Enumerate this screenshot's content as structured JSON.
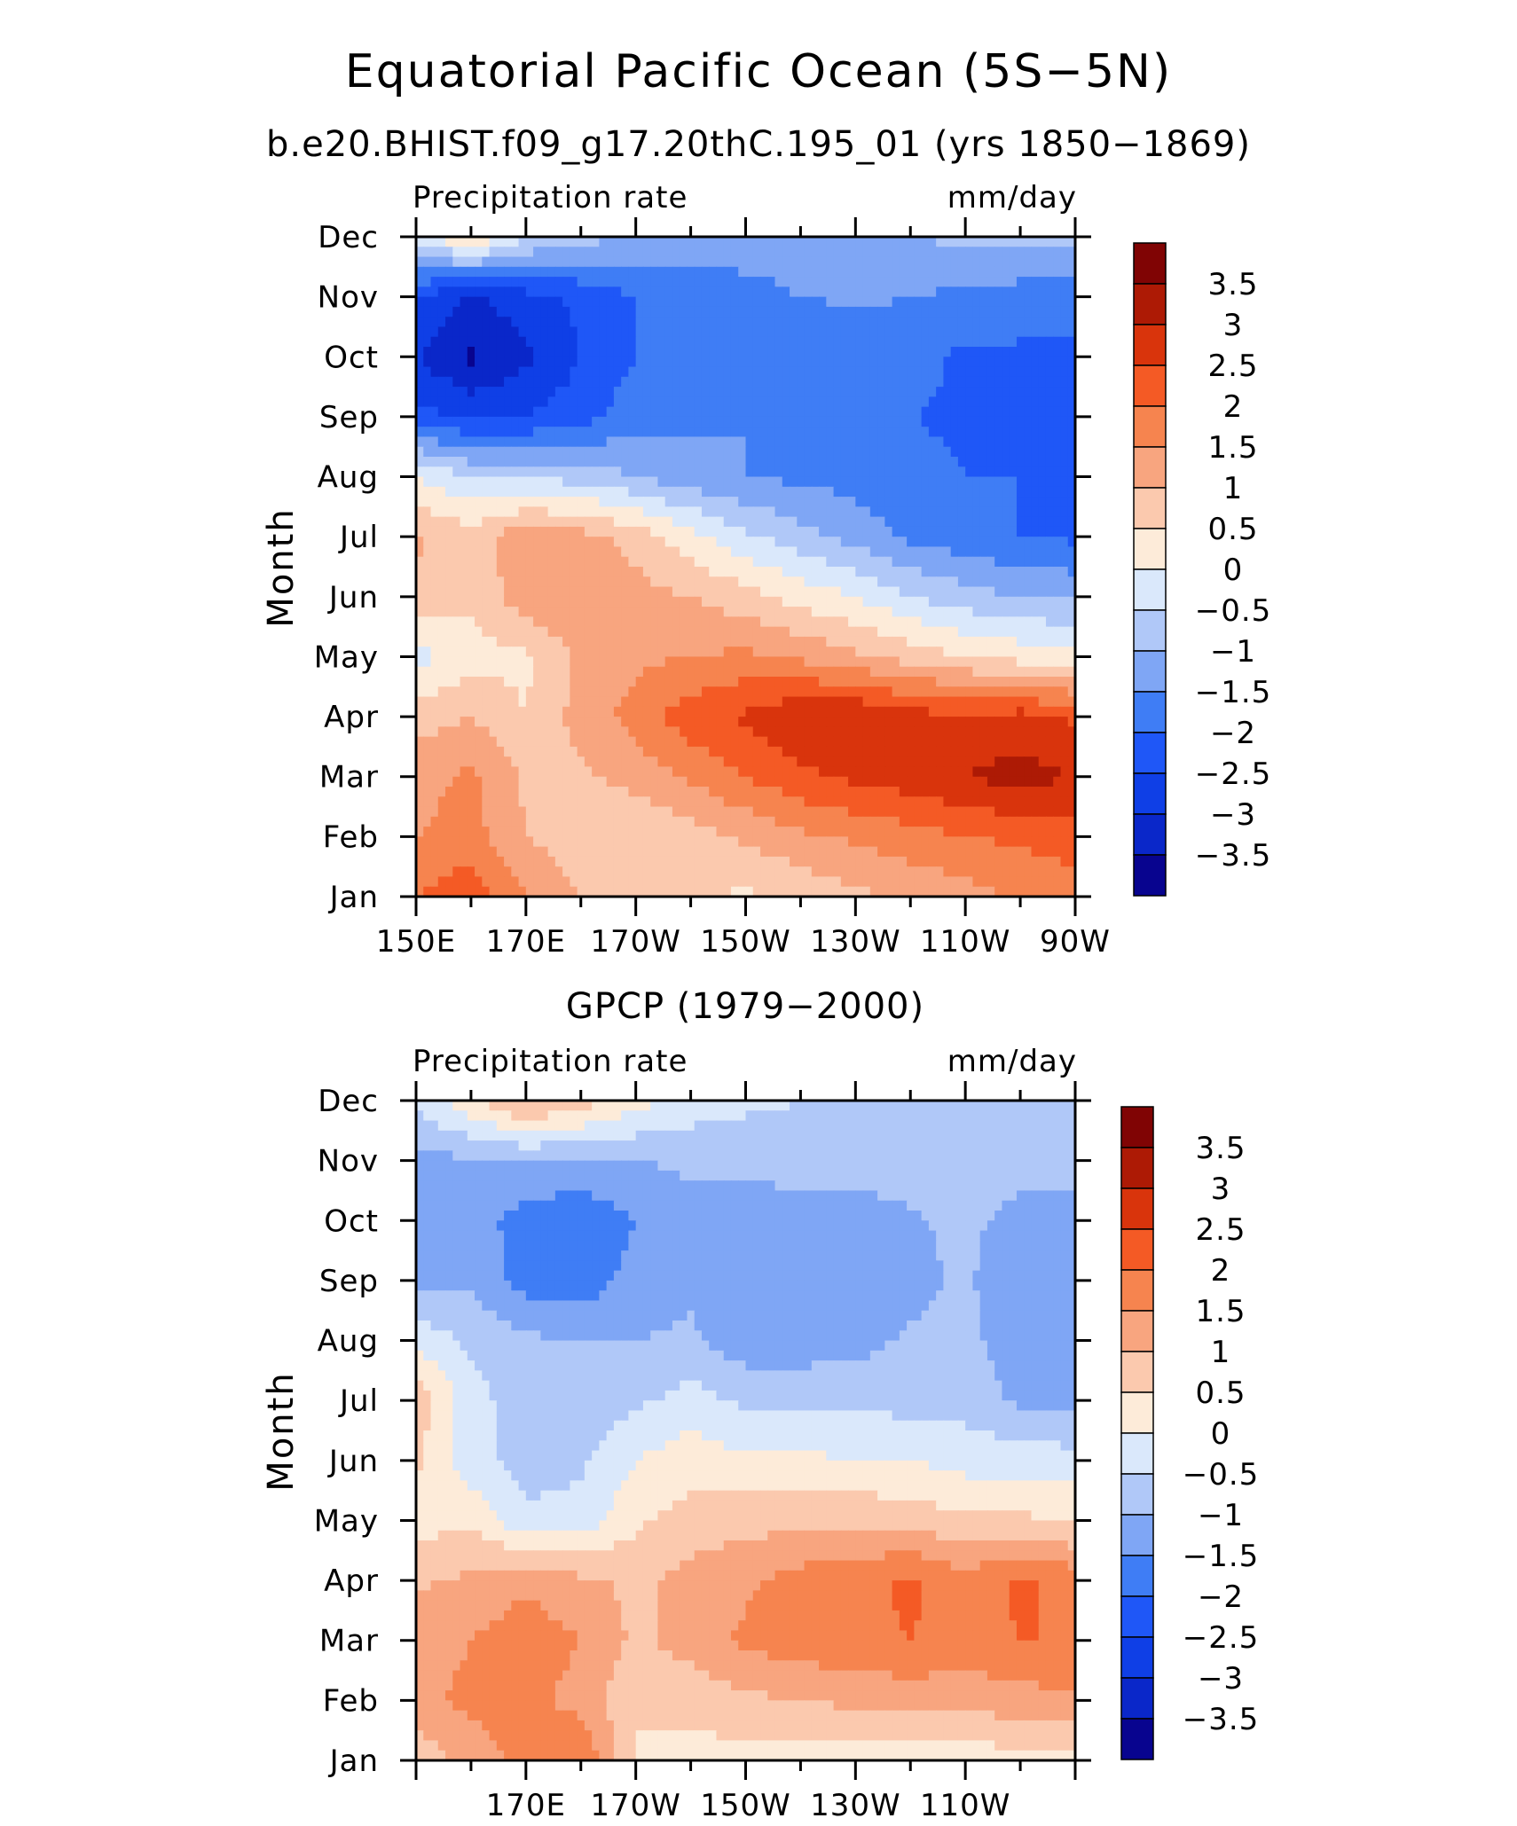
{
  "figure": {
    "title": "Equatorial Pacific Ocean (5S−5N)",
    "subtitle": "b.e20.BHIST.f09_g17.20thC.195_01 (yrs 1850−1869)",
    "second_title": "GPCP (1979−2000)"
  },
  "colors": {
    "levels": [
      "#08048f",
      "#0a27c9",
      "#0f3fe6",
      "#1f57f7",
      "#3f7df5",
      "#7fa6f5",
      "#b0c8f8",
      "#dae8fb",
      "#fdebd9",
      "#fbc9ae",
      "#f8a57f",
      "#f6844f",
      "#f45a25",
      "#d9340c",
      "#ad1a05",
      "#800404"
    ],
    "level_boundaries": [
      -3.5,
      -3,
      -2.5,
      -2,
      -1.5,
      -1,
      -0.5,
      0,
      0.5,
      1,
      1.5,
      2,
      2.5,
      3,
      3.5
    ]
  },
  "chart_data": [
    {
      "type": "heatmap",
      "title": "b.e20.BHIST.f09_g17.20thC.195_01 (yrs 1850−1869)",
      "left_label": "Precipitation rate",
      "right_label": "mm/day",
      "ylabel": "Month",
      "xlabel": "",
      "x_ticks": [
        "150E",
        "170E",
        "170W",
        "150W",
        "130W",
        "110W",
        "90W"
      ],
      "x_values_deg": [
        150,
        160,
        170,
        180,
        190,
        200,
        210,
        220,
        230,
        240,
        250,
        260,
        270
      ],
      "y_ticks": [
        "Jan",
        "Feb",
        "Mar",
        "Apr",
        "May",
        "Jun",
        "Jul",
        "Aug",
        "Sep",
        "Oct",
        "Nov",
        "Dec"
      ],
      "colorbar_labels": [
        "3.5",
        "3",
        "2.5",
        "2",
        "1.5",
        "1",
        "0.5",
        "0",
        "−0.5",
        "−1",
        "−1.5",
        "−2",
        "−2.5",
        "−3",
        "−3.5"
      ],
      "values": [
        [
          2.0,
          2.4,
          1.5,
          1.0,
          0.6,
          0.6,
          0.4,
          0.6,
          0.9,
          1.1,
          1.3,
          1.6,
          1.8
        ],
        [
          1.5,
          1.7,
          1.0,
          0.7,
          0.5,
          0.8,
          1.1,
          1.4,
          1.6,
          1.8,
          2.0,
          2.1,
          2.2
        ],
        [
          1.3,
          1.6,
          0.9,
          0.9,
          1.2,
          1.6,
          2.0,
          2.4,
          2.6,
          2.8,
          3.0,
          3.2,
          3.0
        ],
        [
          0.8,
          1.0,
          0.5,
          1.2,
          1.7,
          2.3,
          2.6,
          3.0,
          3.0,
          2.7,
          2.6,
          2.7,
          2.4
        ],
        [
          -0.2,
          0.3,
          0.4,
          1.1,
          1.4,
          1.5,
          1.6,
          1.4,
          1.1,
          0.8,
          0.5,
          0.3,
          0.2
        ],
        [
          0.8,
          0.6,
          1.3,
          1.5,
          1.2,
          1.0,
          0.7,
          0.3,
          0.0,
          -0.5,
          -0.8,
          -1.0,
          -1.1
        ],
        [
          1.1,
          0.7,
          1.4,
          1.2,
          0.8,
          0.2,
          -0.4,
          -0.8,
          -1.2,
          -1.6,
          -1.8,
          -2.0,
          -2.1
        ],
        [
          0.0,
          -0.5,
          -0.6,
          -0.7,
          -1.0,
          -1.3,
          -1.5,
          -1.6,
          -1.7,
          -1.8,
          -2.0,
          -2.0,
          -2.1
        ],
        [
          -2.3,
          -2.6,
          -2.5,
          -2.2,
          -1.7,
          -1.6,
          -1.5,
          -1.5,
          -1.6,
          -2.0,
          -2.1,
          -2.1,
          -2.1
        ],
        [
          -3.0,
          -3.6,
          -3.1,
          -2.5,
          -2.0,
          -2.0,
          -2.0,
          -2.0,
          -2.0,
          -1.8,
          -2.1,
          -2.1,
          -2.1
        ],
        [
          -2.5,
          -3.1,
          -2.7,
          -2.4,
          -2.0,
          -1.8,
          -1.7,
          -1.5,
          -1.4,
          -1.5,
          -1.6,
          -1.7,
          -1.8
        ],
        [
          -0.2,
          0.6,
          -0.4,
          -0.8,
          -1.1,
          -1.2,
          -1.2,
          -1.2,
          -1.1,
          -1.0,
          -0.9,
          -0.9,
          -0.8
        ]
      ]
    },
    {
      "type": "heatmap",
      "title": "GPCP (1979−2000)",
      "left_label": "Precipitation rate",
      "right_label": "mm/day",
      "ylabel": "Month",
      "xlabel": "",
      "x_ticks": [
        "170E",
        "170W",
        "150W",
        "130W",
        "110W"
      ],
      "x_values_deg": [
        150,
        160,
        170,
        180,
        190,
        200,
        210,
        220,
        230,
        240,
        250,
        260,
        270
      ],
      "y_ticks": [
        "Jan",
        "Feb",
        "Mar",
        "Apr",
        "May",
        "Jun",
        "Jul",
        "Aug",
        "Sep",
        "Oct",
        "Nov",
        "Dec"
      ],
      "colorbar_labels": [
        "3.5",
        "3",
        "2.5",
        "2",
        "1.5",
        "1",
        "0.5",
        "0",
        "−0.5",
        "−1",
        "−1.5",
        "−2",
        "−2.5",
        "−3",
        "−3.5"
      ],
      "values": [
        [
          0.6,
          1.3,
          1.6,
          2.0,
          0.4,
          0.3,
          0.3,
          0.3,
          0.3,
          0.2,
          0.2,
          0.3,
          0.4
        ],
        [
          1.4,
          1.6,
          1.7,
          1.3,
          0.6,
          0.7,
          0.9,
          1.0,
          1.1,
          1.2,
          1.2,
          1.3,
          1.4
        ],
        [
          1.3,
          1.5,
          1.8,
          1.5,
          0.9,
          1.2,
          1.6,
          1.8,
          1.9,
          2.0,
          1.8,
          2.0,
          2.0
        ],
        [
          0.9,
          1.1,
          1.4,
          1.1,
          0.9,
          1.2,
          1.4,
          1.7,
          1.8,
          2.1,
          1.7,
          2.1,
          1.8
        ],
        [
          0.3,
          0.4,
          -0.4,
          -0.3,
          0.4,
          0.7,
          0.8,
          0.9,
          0.9,
          0.8,
          0.6,
          0.6,
          0.4
        ],
        [
          0.6,
          -0.3,
          -0.7,
          -0.6,
          0.0,
          0.3,
          0.1,
          0.1,
          0.0,
          0.0,
          -0.2,
          -0.2,
          -0.3
        ],
        [
          0.8,
          -0.3,
          -0.8,
          -0.8,
          -0.6,
          -0.3,
          -0.6,
          -0.6,
          -0.6,
          -0.7,
          -0.7,
          -1.1,
          -1.2
        ],
        [
          -0.1,
          -0.6,
          -0.9,
          -1.0,
          -1.0,
          -0.9,
          -1.3,
          -1.3,
          -1.2,
          -0.9,
          -0.8,
          -1.4,
          -1.3
        ],
        [
          -1.3,
          -1.1,
          -1.7,
          -1.8,
          -1.3,
          -1.1,
          -1.4,
          -1.3,
          -1.3,
          -1.2,
          -0.9,
          -1.5,
          -1.4
        ],
        [
          -1.4,
          -1.3,
          -1.7,
          -1.9,
          -1.5,
          -1.2,
          -1.3,
          -1.4,
          -1.4,
          -1.1,
          -0.8,
          -1.3,
          -1.3
        ],
        [
          -1.1,
          -1.1,
          -1.0,
          -1.1,
          -1.0,
          -0.9,
          -0.8,
          -0.7,
          -0.6,
          -0.6,
          -0.6,
          -0.6,
          -0.6
        ],
        [
          -0.4,
          0.4,
          1.2,
          0.8,
          0.2,
          -0.2,
          -0.4,
          -0.5,
          -0.5,
          -0.5,
          -0.5,
          -0.5,
          -0.5
        ]
      ]
    }
  ]
}
